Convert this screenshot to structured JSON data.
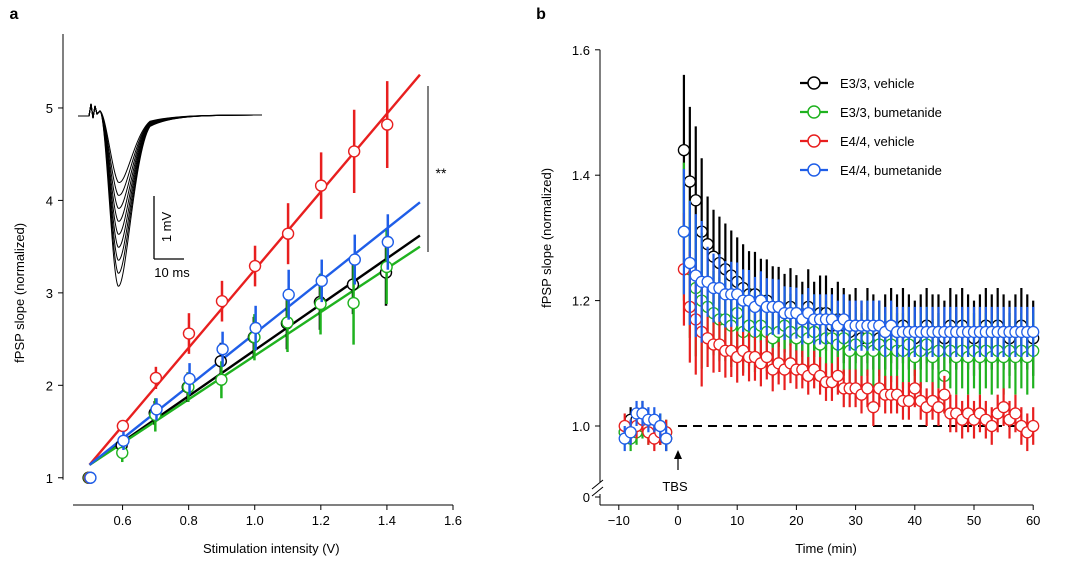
{
  "chart_data": [
    {
      "panel_label": "a",
      "type": "scatter",
      "xlabel": "Stimulation intensity (V)",
      "ylabel": "fPSP slope (normalized)",
      "xlim": [
        0.45,
        1.6
      ],
      "ylim": [
        0.9,
        5.8
      ],
      "x_ticks": [
        0.6,
        0.8,
        1.0,
        1.2,
        1.4,
        1.6
      ],
      "x_tick_labels": [
        "0.6",
        "0.8",
        "1.0",
        "1.2",
        "1.4",
        "1.6"
      ],
      "y_ticks": [
        1,
        2,
        3,
        4,
        5
      ],
      "y_tick_labels": [
        "1",
        "2",
        "3",
        "4",
        "5"
      ],
      "significance_label": "**",
      "inset": {
        "type": "trace",
        "scale_bar_vertical": "1 mV",
        "scale_bar_horizontal": "10 ms",
        "n_traces": 9
      },
      "series": [
        {
          "color": "#000000",
          "x": [
            0.5,
            0.6,
            0.7,
            0.8,
            0.9,
            1.0,
            1.1,
            1.2,
            1.3,
            1.4
          ],
          "y": [
            1.0,
            1.35,
            1.7,
            1.98,
            2.26,
            2.52,
            2.67,
            2.9,
            3.09,
            3.22
          ],
          "err": [
            0.03,
            0.1,
            0.13,
            0.16,
            0.2,
            0.22,
            0.28,
            0.3,
            0.32,
            0.36
          ],
          "fit": {
            "x": [
              0.5,
              1.5
            ],
            "y": [
              1.14,
              3.62
            ]
          }
        },
        {
          "color": "#1fb21f",
          "x": [
            0.5,
            0.6,
            0.7,
            0.8,
            0.9,
            1.0,
            1.1,
            1.2,
            1.3,
            1.4
          ],
          "y": [
            1.0,
            1.27,
            1.68,
            1.98,
            2.06,
            2.52,
            2.68,
            2.88,
            2.89,
            3.28
          ],
          "err": [
            0.03,
            0.1,
            0.18,
            0.16,
            0.2,
            0.25,
            0.32,
            0.33,
            0.45,
            0.4
          ],
          "fit": {
            "x": [
              0.5,
              1.5
            ],
            "y": [
              1.14,
              3.5
            ]
          }
        },
        {
          "color": "#e81f1f",
          "x": [
            0.5,
            0.6,
            0.7,
            0.8,
            0.9,
            1.0,
            1.1,
            1.2,
            1.3,
            1.4
          ],
          "y": [
            1.0,
            1.56,
            2.08,
            2.56,
            2.91,
            3.29,
            3.64,
            4.16,
            4.53,
            4.82
          ],
          "err": [
            0.03,
            0.05,
            0.12,
            0.22,
            0.22,
            0.22,
            0.33,
            0.36,
            0.45,
            0.47
          ],
          "fit": {
            "x": [
              0.5,
              1.5
            ],
            "y": [
              1.14,
              5.36
            ]
          }
        },
        {
          "color": "#1f5ee8",
          "x": [
            0.5,
            0.6,
            0.7,
            0.8,
            0.9,
            1.0,
            1.1,
            1.2,
            1.3,
            1.4
          ],
          "y": [
            1.0,
            1.4,
            1.74,
            2.07,
            2.39,
            2.62,
            2.98,
            3.13,
            3.36,
            3.55
          ],
          "err": [
            0.03,
            0.1,
            0.12,
            0.17,
            0.19,
            0.24,
            0.27,
            0.23,
            0.27,
            0.3
          ],
          "fit": {
            "x": [
              0.5,
              1.5
            ],
            "y": [
              1.14,
              3.98
            ]
          }
        }
      ]
    },
    {
      "panel_label": "b",
      "type": "scatter",
      "xlabel": "Time (min)",
      "ylabel": "fPSP slope (normalized)",
      "xlim": [
        -11,
        61
      ],
      "ylim": [
        0.88,
        1.6
      ],
      "x_ticks": [
        -10,
        0,
        10,
        20,
        30,
        40,
        50,
        60
      ],
      "x_tick_labels": [
        "−10",
        "0",
        "10",
        "20",
        "30",
        "40",
        "50",
        "60"
      ],
      "y_ticks": [
        1.0,
        1.2,
        1.4,
        1.6
      ],
      "y_tick_labels": [
        "1.0",
        "1.2",
        "1.4",
        "1.6"
      ],
      "y_zero_label": "0",
      "axis_break": true,
      "reference_line": 1.0,
      "annotation": "TBS",
      "annotation_x": 0,
      "legend_position": "top-right",
      "series": [
        {
          "name": "E3/3, vehicle",
          "color": "#000000",
          "baseline": [
            0.99,
            1.01,
            1.01,
            1.02,
            1.0,
            0.99,
            0.99,
            0.98
          ],
          "post": [
            1.44,
            1.39,
            1.36,
            1.31,
            1.29,
            1.27,
            1.26,
            1.25,
            1.24,
            1.23,
            1.22,
            1.21,
            1.21,
            1.2,
            1.2,
            1.19,
            1.19,
            1.18,
            1.19,
            1.18,
            1.17,
            1.19,
            1.17,
            1.18,
            1.18,
            1.16,
            1.17,
            1.16,
            1.15,
            1.16,
            1.14,
            1.16,
            1.15,
            1.14,
            1.15,
            1.16,
            1.15,
            1.16,
            1.15,
            1.14,
            1.15,
            1.16,
            1.15,
            1.15,
            1.14,
            1.16,
            1.15,
            1.16,
            1.15,
            1.14,
            1.15,
            1.16,
            1.15,
            1.16,
            1.15,
            1.14,
            1.15,
            1.16,
            1.15,
            1.14
          ],
          "err_base": 0.02,
          "err_start": 0.08,
          "err_end": 0.06
        },
        {
          "name": "E3/3, bumetanide",
          "color": "#1fb21f",
          "baseline": [
            0.99,
            0.98,
            0.99,
            1.0,
            0.99,
            1.0,
            1.0,
            0.99
          ],
          "post": [
            1.31,
            1.25,
            1.22,
            1.2,
            1.19,
            1.18,
            1.17,
            1.17,
            1.16,
            1.18,
            1.15,
            1.16,
            1.15,
            1.16,
            1.15,
            1.14,
            1.15,
            1.16,
            1.15,
            1.14,
            1.15,
            1.14,
            1.15,
            1.13,
            1.14,
            1.14,
            1.13,
            1.14,
            1.12,
            1.13,
            1.12,
            1.14,
            1.12,
            1.13,
            1.12,
            1.13,
            1.12,
            1.12,
            1.13,
            1.11,
            1.12,
            1.13,
            1.11,
            1.12,
            1.08,
            1.12,
            1.11,
            1.12,
            1.11,
            1.12,
            1.11,
            1.12,
            1.11,
            1.12,
            1.11,
            1.12,
            1.11,
            1.12,
            1.11,
            1.12
          ],
          "err_base": 0.02,
          "err_start": 0.07,
          "err_end": 0.06
        },
        {
          "name": "E4/4, vehicle",
          "color": "#e81f1f",
          "baseline": [
            1.0,
            0.99,
            1.0,
            1.01,
            0.99,
            0.98,
            0.99,
            0.99
          ],
          "post": [
            1.25,
            1.19,
            1.17,
            1.15,
            1.14,
            1.13,
            1.13,
            1.12,
            1.12,
            1.11,
            1.12,
            1.11,
            1.11,
            1.1,
            1.11,
            1.09,
            1.1,
            1.09,
            1.1,
            1.09,
            1.09,
            1.08,
            1.09,
            1.08,
            1.07,
            1.07,
            1.08,
            1.06,
            1.06,
            1.06,
            1.05,
            1.06,
            1.03,
            1.06,
            1.05,
            1.05,
            1.05,
            1.04,
            1.04,
            1.06,
            1.04,
            1.03,
            1.04,
            1.03,
            1.05,
            1.02,
            1.02,
            1.01,
            1.02,
            1.01,
            1.02,
            1.01,
            1.0,
            1.02,
            1.03,
            1.01,
            1.02,
            1.0,
            0.99,
            1.0
          ],
          "err_base": 0.02,
          "err_start": 0.05,
          "err_end": 0.03
        },
        {
          "name": "E4/4, bumetanide",
          "color": "#1f5ee8",
          "baseline": [
            0.98,
            0.99,
            1.02,
            1.02,
            1.01,
            1.01,
            1.0,
            0.98
          ],
          "post": [
            1.31,
            1.26,
            1.24,
            1.23,
            1.23,
            1.22,
            1.22,
            1.21,
            1.21,
            1.21,
            1.2,
            1.2,
            1.19,
            1.2,
            1.19,
            1.19,
            1.19,
            1.18,
            1.18,
            1.18,
            1.17,
            1.18,
            1.17,
            1.17,
            1.17,
            1.17,
            1.16,
            1.17,
            1.16,
            1.16,
            1.16,
            1.16,
            1.16,
            1.16,
            1.15,
            1.16,
            1.15,
            1.15,
            1.15,
            1.15,
            1.15,
            1.15,
            1.15,
            1.15,
            1.15,
            1.15,
            1.15,
            1.15,
            1.15,
            1.15,
            1.15,
            1.15,
            1.15,
            1.15,
            1.15,
            1.15,
            1.15,
            1.15,
            1.15,
            1.15
          ],
          "err_base": 0.02,
          "err_start": 0.06,
          "err_end": 0.04
        }
      ]
    }
  ]
}
